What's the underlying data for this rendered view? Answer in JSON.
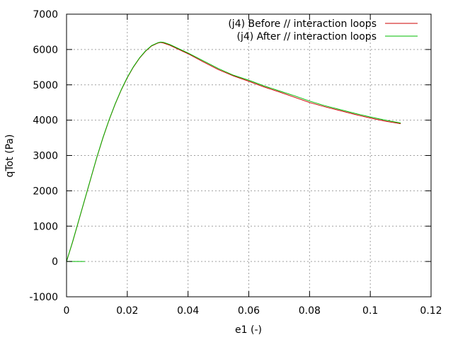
{
  "chart_data": {
    "type": "line",
    "title": "",
    "xlabel": "e1 (-)",
    "ylabel": "qTot (Pa)",
    "xlim": [
      0,
      0.12
    ],
    "ylim": [
      -1000,
      7000
    ],
    "x_ticks": [
      0,
      0.02,
      0.04,
      0.06,
      0.08,
      0.1,
      0.12
    ],
    "x_tick_labels": [
      "0",
      "0.02",
      "0.04",
      "0.06",
      "0.08",
      "0.1",
      "0.12"
    ],
    "y_ticks": [
      -1000,
      0,
      1000,
      2000,
      3000,
      4000,
      5000,
      6000,
      7000
    ],
    "y_tick_labels": [
      "-1000",
      "0",
      "1000",
      "2000",
      "3000",
      "4000",
      "5000",
      "6000",
      "7000"
    ],
    "grid": true,
    "legend_position": "top-right",
    "series": [
      {
        "name": "(j4) Before // interaction loops",
        "color": "#cc0000",
        "x": [
          0,
          0.002,
          0.004,
          0.006,
          0.008,
          0.01,
          0.012,
          0.014,
          0.016,
          0.018,
          0.02,
          0.022,
          0.024,
          0.026,
          0.028,
          0.03,
          0.031,
          0.032,
          0.034,
          0.036,
          0.038,
          0.04,
          0.045,
          0.05,
          0.055,
          0.06,
          0.065,
          0.07,
          0.075,
          0.08,
          0.085,
          0.09,
          0.095,
          0.1,
          0.105,
          0.11
        ],
        "y": [
          0,
          550,
          1150,
          1750,
          2350,
          2950,
          3500,
          4000,
          4450,
          4850,
          5200,
          5500,
          5750,
          5950,
          6100,
          6180,
          6200,
          6180,
          6120,
          6040,
          5960,
          5880,
          5650,
          5430,
          5250,
          5100,
          4940,
          4800,
          4650,
          4500,
          4380,
          4270,
          4160,
          4060,
          3970,
          3900
        ]
      },
      {
        "name": "(j4) After // interaction loops",
        "color": "#00bb00",
        "x": [
          0,
          0.002,
          0.004,
          0.006,
          0.008,
          0.01,
          0.012,
          0.014,
          0.016,
          0.018,
          0.02,
          0.022,
          0.024,
          0.026,
          0.028,
          0.03,
          0.031,
          0.032,
          0.034,
          0.036,
          0.038,
          0.04,
          0.045,
          0.05,
          0.055,
          0.06,
          0.065,
          0.07,
          0.075,
          0.08,
          0.085,
          0.09,
          0.095,
          0.1,
          0.105,
          0.11
        ],
        "y": [
          0,
          560,
          1160,
          1760,
          2360,
          2960,
          3510,
          4010,
          4460,
          4860,
          5210,
          5510,
          5760,
          5960,
          6110,
          6190,
          6210,
          6200,
          6140,
          6060,
          5980,
          5900,
          5680,
          5460,
          5270,
          5130,
          4970,
          4830,
          4690,
          4540,
          4410,
          4300,
          4190,
          4090,
          4000,
          3920
        ]
      },
      {
        "name": "",
        "color": "#00bb00",
        "x": [
          0,
          0.006
        ],
        "y": [
          0,
          0
        ]
      }
    ]
  }
}
